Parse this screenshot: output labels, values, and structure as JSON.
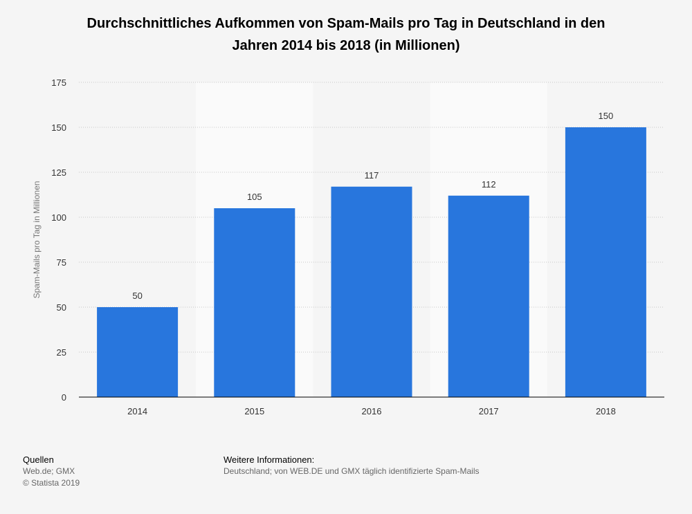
{
  "title": {
    "line1": "Durchschnittliches Aufkommen von Spam-Mails pro Tag in Deutschland in den",
    "line2": "Jahren 2014 bis 2018 (in Millionen)"
  },
  "chart_data": {
    "type": "bar",
    "title": "Durchschnittliches Aufkommen von Spam-Mails pro Tag in Deutschland in den Jahren 2014 bis 2018 (in Millionen)",
    "categories": [
      "2014",
      "2015",
      "2016",
      "2017",
      "2018"
    ],
    "values": [
      50,
      105,
      117,
      112,
      150
    ],
    "data_labels": [
      "50",
      "105",
      "117",
      "112",
      "150"
    ],
    "ylabel": "Spam-Mails pro Tag in Millionen",
    "xlabel": "",
    "ylim": [
      0,
      175
    ],
    "yticks": [
      "0",
      "25",
      "50",
      "75",
      "100",
      "125",
      "150",
      "175"
    ],
    "grid": true,
    "bar_color": "#2876dd"
  },
  "footer": {
    "sources_heading": "Quellen",
    "sources": "Web.de; GMX",
    "copyright": "© Statista 2019",
    "info_heading": "Weitere Informationen:",
    "info": "Deutschland; von WEB.DE und GMX täglich identifizierte Spam-Mails"
  }
}
